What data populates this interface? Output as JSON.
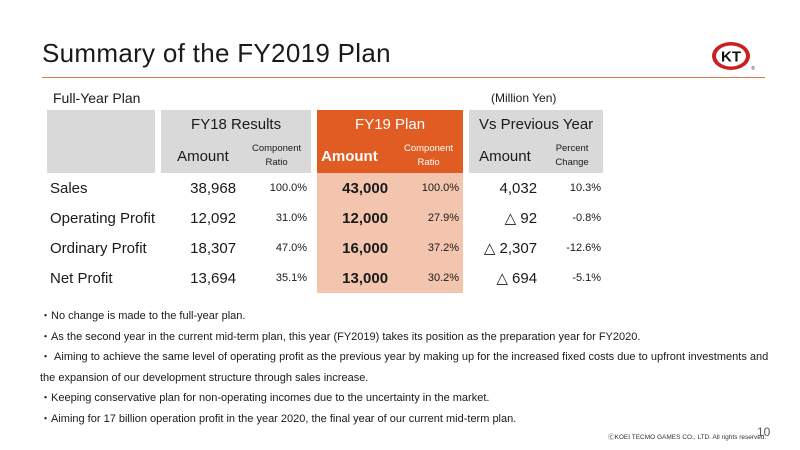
{
  "title": "Summary of the FY2019 Plan",
  "logo_text": "KT",
  "section_label": "Full-Year Plan",
  "unit": "(Million Yen)",
  "table": {
    "groups": {
      "results": "FY18 Results",
      "plan": "FY19 Plan",
      "vs": "Vs Previous Year"
    },
    "subheaders": {
      "amount": "Amount",
      "component_line1": "Component",
      "component_line2": "Ratio",
      "percent_line1": "Percent",
      "percent_line2": "Change"
    },
    "rows": [
      {
        "label": "Sales",
        "fy18_amount": "38,968",
        "fy18_ratio": "100.0%",
        "fy19_amount": "43,000",
        "fy19_ratio": "100.0%",
        "vs_amount": "4,032",
        "vs_pct": "10.3%"
      },
      {
        "label": "Operating Profit",
        "fy18_amount": "12,092",
        "fy18_ratio": "31.0%",
        "fy19_amount": "12,000",
        "fy19_ratio": "27.9%",
        "vs_amount": "△ 92",
        "vs_pct": "-0.8%"
      },
      {
        "label": "Ordinary Profit",
        "fy18_amount": "18,307",
        "fy18_ratio": "47.0%",
        "fy19_amount": "16,000",
        "fy19_ratio": "37.2%",
        "vs_amount": "△ 2,307",
        "vs_pct": "-12.6%"
      },
      {
        "label": "Net Profit",
        "fy18_amount": "13,694",
        "fy18_ratio": "35.1%",
        "fy19_amount": "13,000",
        "fy19_ratio": "30.2%",
        "vs_amount": "△ 694",
        "vs_pct": "-5.1%"
      }
    ]
  },
  "notes": [
    "・No change is made to the full-year plan.",
    "・As the second year in the current mid-term plan, this year (FY2019) takes its position as the preparation year for FY2020.",
    "・ Aiming to achieve the same level of operating profit as the previous year by making up for the increased fixed costs due to upfront investments and",
    "the expansion of our development structure through sales increase.",
    "・Keeping conservative plan for non-operating incomes due to the uncertainty in the market.",
    "・Aiming for 17 billion operation profit in the year 2020, the final year of our current mid-term plan."
  ],
  "footer": {
    "copyright": "ⒸKOEI TECMO GAMES CO., LTD.  All rights reserved.",
    "page": "10"
  },
  "colors": {
    "accent": "#e05c22",
    "accent_light": "#f4c5ae",
    "header_gray": "#d9d9d9",
    "rule": "#e07a4a",
    "logo_red": "#cc1f1f"
  }
}
